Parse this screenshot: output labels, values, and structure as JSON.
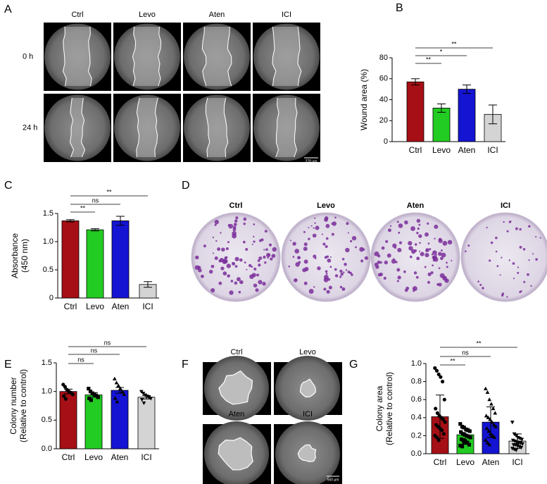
{
  "figure_a": {
    "label": "A",
    "columns": [
      "Ctrl",
      "Levo",
      "Aten",
      "ICI"
    ],
    "rows": [
      "0 h",
      "24 h"
    ],
    "scale_bar": "270 μm"
  },
  "figure_d": {
    "label": "D",
    "columns": [
      "Ctrl",
      "Levo",
      "Aten",
      "ICI"
    ]
  },
  "figure_f": {
    "label": "F",
    "titles": [
      "Ctrl",
      "Levo",
      "Aten",
      "ICI"
    ],
    "scale_bar": "550 μm"
  },
  "chart_data": [
    {
      "type": "bar",
      "panel": "B",
      "ylabel": [
        "Wound area (%)"
      ],
      "categories": [
        "Ctrl",
        "Levo",
        "Aten",
        "ICI"
      ],
      "values": [
        57,
        32,
        50,
        26
      ],
      "errors": [
        3,
        4,
        4,
        9
      ],
      "colors": [
        "#a50f15",
        "#22cc22",
        "#1414d2",
        "#d4d4d4"
      ],
      "ylim": [
        0,
        80
      ],
      "yticks": [
        0,
        20,
        40,
        60,
        80
      ],
      "significance": [
        "**",
        "*",
        "**"
      ]
    },
    {
      "type": "bar",
      "panel": "C",
      "ylabel": [
        "Absorbance",
        "(450 nm)"
      ],
      "categories": [
        "Ctrl",
        "Levo",
        "Aten",
        "ICI"
      ],
      "values": [
        1.37,
        1.21,
        1.37,
        0.24
      ],
      "errors": [
        0.02,
        0.02,
        0.08,
        0.05
      ],
      "colors": [
        "#a50f15",
        "#22cc22",
        "#1414d2",
        "#d4d4d4"
      ],
      "ylim": [
        0,
        1.5
      ],
      "yticks": [
        0,
        0.5,
        {
          "value": 1,
          "label": "1.0"
        },
        1.5
      ],
      "significance": [
        "**",
        "ns",
        "**"
      ]
    },
    {
      "type": "bar",
      "panel": "E",
      "ylabel": [
        "Colony number",
        "(Relative to control)"
      ],
      "categories": [
        "Ctrl",
        "Levo",
        "Aten",
        "ICI"
      ],
      "values": [
        1.0,
        0.94,
        1.02,
        0.9
      ],
      "errors": [
        0.04,
        0.04,
        0.05,
        0.03
      ],
      "colors": [
        "#a50f15",
        "#22cc22",
        "#1414d2",
        "#d4d4d4"
      ],
      "markers": [
        "circle",
        "square",
        "triangle",
        "triangle-down"
      ],
      "points": [
        [
          1.12,
          1.08,
          1.03,
          1.0,
          0.98,
          0.95,
          0.92,
          0.87
        ],
        [
          1.05,
          1.0,
          0.97,
          0.95,
          0.93,
          0.9,
          0.88,
          0.85
        ],
        [
          1.22,
          1.15,
          1.1,
          1.05,
          1.0,
          0.95,
          0.88,
          0.82
        ],
        [
          1.0,
          0.97,
          0.94,
          0.92,
          0.9,
          0.88,
          0.86,
          0.8
        ]
      ],
      "ylim": [
        0,
        1.5
      ],
      "yticks": [
        {
          "value": 0,
          "label": "0.0"
        },
        {
          "value": 0.5,
          "label": "0.5"
        },
        {
          "value": 1,
          "label": "1.0"
        },
        {
          "value": 1.5,
          "label": "1.5"
        }
      ],
      "significance": [
        "ns",
        "ns",
        "ns"
      ]
    },
    {
      "type": "bar",
      "panel": "G",
      "ylabel": [
        "Colony area",
        "(Relative to control)"
      ],
      "categories": [
        "Ctrl",
        "Levo",
        "Aten",
        "ICI"
      ],
      "values": [
        0.41,
        0.21,
        0.35,
        0.14
      ],
      "errors": [
        0.24,
        0.07,
        0.17,
        0.08
      ],
      "colors": [
        "#a50f15",
        "#22cc22",
        "#1414d2",
        "#d4d4d4"
      ],
      "markers": [
        "circle",
        "square",
        "triangle",
        "triangle-down"
      ],
      "points": [
        [
          0.95,
          0.92,
          0.88,
          0.85,
          0.8,
          0.6,
          0.5,
          0.45,
          0.42,
          0.4,
          0.38,
          0.35,
          0.32,
          0.3,
          0.28,
          0.26,
          0.22,
          0.2,
          0.18,
          0.15
        ],
        [
          0.33,
          0.3,
          0.29,
          0.27,
          0.26,
          0.25,
          0.24,
          0.22,
          0.21,
          0.2,
          0.19,
          0.18,
          0.16,
          0.15,
          0.14,
          0.12,
          0.1,
          0.09,
          0.08,
          0.12
        ],
        [
          0.72,
          0.68,
          0.6,
          0.55,
          0.5,
          0.45,
          0.42,
          0.4,
          0.38,
          0.35,
          0.32,
          0.3,
          0.28,
          0.25,
          0.22,
          0.2,
          0.18,
          0.15,
          0.12,
          0.1
        ],
        [
          0.35,
          0.22,
          0.2,
          0.18,
          0.17,
          0.16,
          0.15,
          0.14,
          0.13,
          0.12,
          0.12,
          0.11,
          0.1,
          0.1,
          0.09,
          0.08,
          0.07,
          0.06,
          0.05,
          0.04
        ]
      ],
      "ylim": [
        0,
        1.0
      ],
      "yticks": [
        {
          "value": 0,
          "label": "0.0"
        },
        {
          "value": 0.2,
          "label": "0.2"
        },
        {
          "value": 0.4,
          "label": "0.4"
        },
        {
          "value": 0.6,
          "label": "0.6"
        },
        {
          "value": 0.8,
          "label": "0.8"
        },
        {
          "value": 1,
          "label": "1.0"
        }
      ],
      "significance": [
        "**",
        "ns",
        "**"
      ]
    }
  ]
}
